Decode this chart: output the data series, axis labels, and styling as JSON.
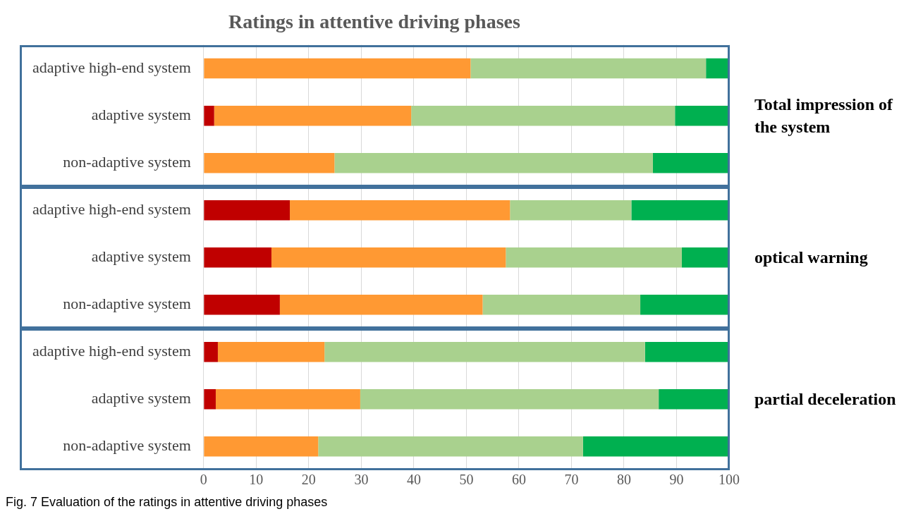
{
  "chart_data": {
    "type": "bar",
    "orientation": "horizontal",
    "stacked": true,
    "title": "Ratings in attentive driving phases",
    "categories": [
      "adaptive high-end system",
      "adaptive system",
      "non-adaptive system",
      "adaptive high-end system",
      "adaptive system",
      "non-adaptive system",
      "adaptive high-end system",
      "adaptive system",
      "non-adaptive system"
    ],
    "series": [
      {
        "color": "#c00000",
        "values": [
          0,
          2.0,
          0,
          16.4,
          12.9,
          14.5,
          2.7,
          2.3,
          0
        ]
      },
      {
        "color": "#ff9933",
        "values": [
          50.8,
          37.5,
          24.9,
          41.9,
          44.6,
          38.6,
          20.3,
          27.5,
          21.8
        ]
      },
      {
        "color": "#a9d18e",
        "values": [
          44.8,
          50.2,
          60.6,
          23.1,
          33.5,
          30.0,
          61.0,
          56.8,
          50.4
        ]
      },
      {
        "color": "#00b050",
        "values": [
          4.4,
          10.3,
          14.5,
          18.6,
          9.0,
          16.9,
          16.0,
          13.4,
          27.8
        ]
      }
    ],
    "xlim": [
      0,
      100
    ],
    "xticks": [
      0,
      10,
      20,
      30,
      40,
      50,
      60,
      70,
      80,
      90,
      100
    ],
    "grid": "x",
    "legend": false,
    "annotations": [
      "Total impression of the system",
      "optical warning",
      "partial deceleration",
      "Fig. 7 Evaluation of the ratings in attentive driving phases"
    ]
  }
}
